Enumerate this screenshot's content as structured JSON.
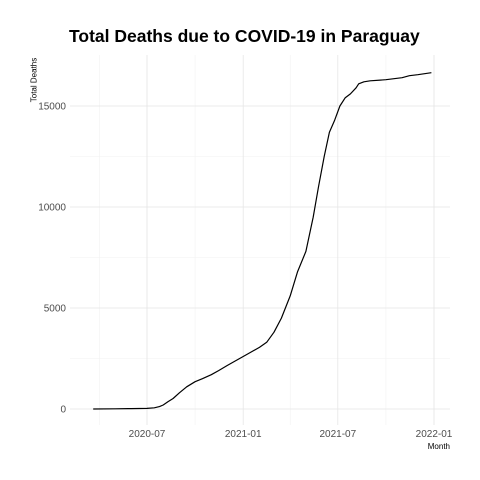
{
  "chart_data": {
    "type": "line",
    "title": "Total Deaths due to COVID-19 in Paraguay",
    "xlabel": "Month",
    "ylabel": "Total Deaths",
    "x_ticks": [
      "2020-07",
      "2021-01",
      "2021-07",
      "2022-01"
    ],
    "y_ticks": [
      "0",
      "5000",
      "10000",
      "15000"
    ],
    "ylim": [
      0,
      16600
    ],
    "xlim": [
      "2020-03-20",
      "2021-12-27"
    ],
    "grid": true,
    "series": [
      {
        "color": "#000000",
        "points": [
          [
            "2020-03-20",
            0
          ],
          [
            "2020-05-01",
            10
          ],
          [
            "2020-06-01",
            20
          ],
          [
            "2020-07-01",
            30
          ],
          [
            "2020-07-15",
            60
          ],
          [
            "2020-07-25",
            120
          ],
          [
            "2020-08-01",
            200
          ],
          [
            "2020-08-10",
            360
          ],
          [
            "2020-08-20",
            520
          ],
          [
            "2020-09-01",
            800
          ],
          [
            "2020-09-15",
            1100
          ],
          [
            "2020-10-01",
            1350
          ],
          [
            "2020-10-15",
            1500
          ],
          [
            "2020-11-01",
            1700
          ],
          [
            "2020-11-15",
            1900
          ],
          [
            "2020-12-01",
            2150
          ],
          [
            "2020-12-15",
            2350
          ],
          [
            "2021-01-01",
            2600
          ],
          [
            "2021-01-15",
            2800
          ],
          [
            "2021-02-01",
            3050
          ],
          [
            "2021-02-15",
            3300
          ],
          [
            "2021-03-01",
            3800
          ],
          [
            "2021-03-15",
            4500
          ],
          [
            "2021-04-01",
            5600
          ],
          [
            "2021-04-15",
            6800
          ],
          [
            "2021-05-01",
            7800
          ],
          [
            "2021-05-15",
            9500
          ],
          [
            "2021-05-25",
            11000
          ],
          [
            "2021-06-05",
            12500
          ],
          [
            "2021-06-15",
            13700
          ],
          [
            "2021-06-25",
            14300
          ],
          [
            "2021-07-05",
            15000
          ],
          [
            "2021-07-15",
            15400
          ],
          [
            "2021-07-25",
            15600
          ],
          [
            "2021-08-05",
            15900
          ],
          [
            "2021-08-10",
            16100
          ],
          [
            "2021-08-20",
            16200
          ],
          [
            "2021-09-01",
            16250
          ],
          [
            "2021-10-01",
            16300
          ],
          [
            "2021-11-01",
            16400
          ],
          [
            "2021-11-15",
            16500
          ],
          [
            "2021-12-01",
            16550
          ],
          [
            "2021-12-27",
            16650
          ]
        ]
      }
    ]
  }
}
